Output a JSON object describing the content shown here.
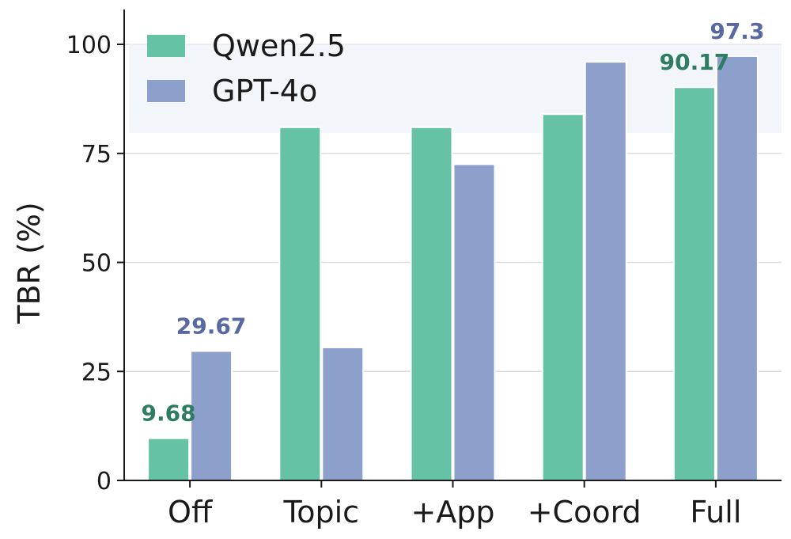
{
  "chart_data": {
    "type": "bar",
    "categories": [
      "Off",
      "Topic",
      "+App",
      "+Coord",
      "Full"
    ],
    "series": [
      {
        "name": "Qwen2.5",
        "values": [
          9.68,
          81.0,
          81.0,
          84.0,
          90.17
        ],
        "color": "#66c2a5",
        "label_color": "#2e7d63"
      },
      {
        "name": "GPT-4o",
        "values": [
          29.67,
          30.5,
          72.5,
          96.0,
          97.3
        ],
        "color": "#8da0cb",
        "label_color": "#5868a0"
      }
    ],
    "data_labels": [
      {
        "series": 0,
        "category": 0,
        "text": "9.68"
      },
      {
        "series": 1,
        "category": 0,
        "text": "29.67"
      },
      {
        "series": 0,
        "category": 4,
        "text": "90.17"
      },
      {
        "series": 1,
        "category": 4,
        "text": "97.3"
      }
    ],
    "title": "",
    "xlabel": "",
    "ylabel": "TBR (%)",
    "ylim": [
      0,
      108
    ],
    "yticks": [
      0,
      25,
      50,
      75,
      100
    ],
    "grid": "horizontal",
    "legend": "top-left"
  }
}
